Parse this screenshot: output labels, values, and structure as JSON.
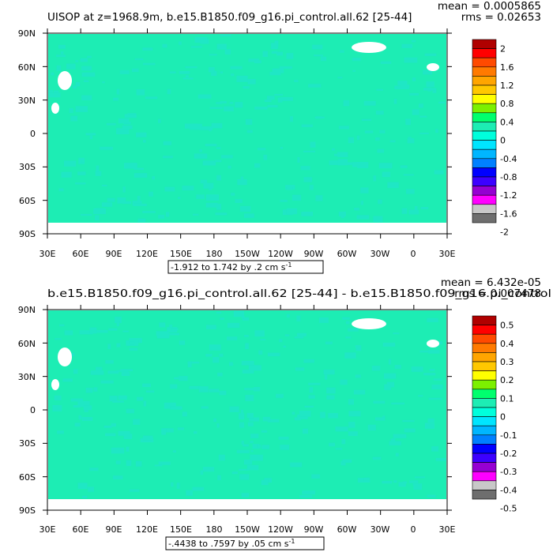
{
  "chart_data": [
    {
      "type": "heatmap",
      "title": "UISOP at z=1968.9m, b.e15.B1850.f09_g16.pi_control.all.62 [25-44]",
      "stats": {
        "mean": "mean = 0.0005865",
        "rms": "rms = 0.02653"
      },
      "lat_ticks": [
        "90N",
        "60N",
        "30N",
        "0",
        "30S",
        "60S",
        "90S"
      ],
      "lon_ticks": [
        "30E",
        "60E",
        "90E",
        "120E",
        "150E",
        "180",
        "150W",
        "120W",
        "90W",
        "60W",
        "30W",
        "0",
        "30E"
      ],
      "range_label": "-1.912 to 1.742 by .2 cm s",
      "range_unit_exp": "-1",
      "colorbar": {
        "labels": [
          "2",
          "1.6",
          "1.2",
          "0.8",
          "0.4",
          "0",
          "-0.4",
          "-0.8",
          "-1.2",
          "-1.6",
          "-2"
        ],
        "colors": [
          "#b00000",
          "#ff0000",
          "#ff4a00",
          "#ff7a00",
          "#ffa500",
          "#ffc800",
          "#ffff00",
          "#7cf000",
          "#00ff6e",
          "#1dedb4",
          "#00ffdc",
          "#00e5ff",
          "#00b6ff",
          "#0080ff",
          "#0000ff",
          "#3c00ff",
          "#9600d2",
          "#ff00ff",
          "#c8c8c8",
          "#6e6e6e"
        ]
      },
      "dominant_colors": {
        "zero_band": "#1dedb4",
        "negative_band": "#1fe7c5",
        "land": "#ffffff"
      }
    },
    {
      "type": "heatmap",
      "title": "b.e15.B1850.f09_g16.pi_control.all.62 [25-44] - b.e15.B1850.f09_g16.pi_control",
      "stats": {
        "mean": "mean = 6.432e-05",
        "rms": "rms = 0.007478"
      },
      "lat_ticks": [
        "90N",
        "60N",
        "30N",
        "0",
        "30S",
        "60S",
        "90S"
      ],
      "lon_ticks": [
        "30E",
        "60E",
        "90E",
        "120E",
        "150E",
        "180",
        "150W",
        "120W",
        "90W",
        "60W",
        "30W",
        "0",
        "30E"
      ],
      "range_label": "-.4438 to .7597 by .05 cm s",
      "range_unit_exp": "-1",
      "colorbar": {
        "labels": [
          "0.5",
          "0.4",
          "0.3",
          "0.2",
          "0.1",
          "0",
          "-0.1",
          "-0.2",
          "-0.3",
          "-0.4",
          "-0.5"
        ],
        "colors": [
          "#b00000",
          "#ff0000",
          "#ff4a00",
          "#ff7a00",
          "#ffa500",
          "#ffc800",
          "#ffff00",
          "#7cf000",
          "#00ff6e",
          "#1dedb4",
          "#00ffdc",
          "#00e5ff",
          "#00b6ff",
          "#0080ff",
          "#0000ff",
          "#3c00ff",
          "#9600d2",
          "#ff00ff",
          "#c8c8c8",
          "#6e6e6e"
        ]
      },
      "dominant_colors": {
        "zero_band": "#1dedb4",
        "negative_band": "#1fe7c5",
        "land": "#ffffff"
      }
    }
  ]
}
